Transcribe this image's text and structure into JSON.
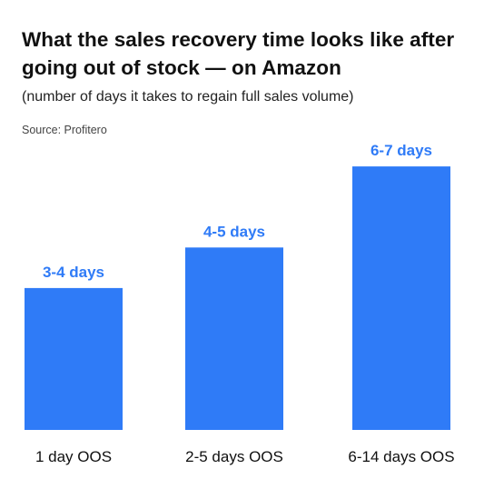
{
  "title": "What the sales recovery time looks like after going out of stock — on Amazon",
  "subtitle": "(number of days it takes to regain full sales volume)",
  "source": "Source: Profitero",
  "colors": {
    "bar": "#2f7bf7",
    "label": "#2f7bf7"
  },
  "chart_data": {
    "type": "bar",
    "categories": [
      "1 day OOS",
      "2-5 days OOS",
      "6-14 days OOS"
    ],
    "values": [
      3.5,
      4.5,
      6.5
    ],
    "data_labels": [
      "3-4 days",
      "4-5 days",
      "6-7 days"
    ],
    "title": "What the sales recovery time looks like after going out of stock — on Amazon",
    "subtitle": "(number of days it takes to regain full sales volume)",
    "xlabel": "",
    "ylabel": "",
    "ylim": [
      0,
      6.5
    ],
    "grid": false,
    "legend": "none"
  }
}
